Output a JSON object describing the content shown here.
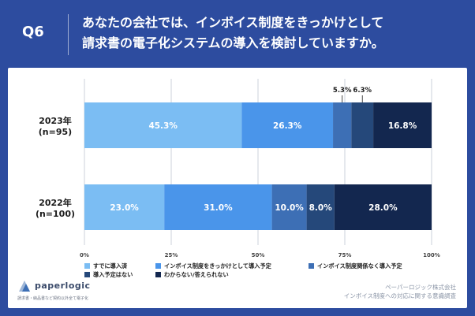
{
  "header": {
    "question_number": "Q6",
    "question_line1": "あなたの会社では、インボイス制度をきっかけとして",
    "question_line2": "請求書の電子化システムの導入を検討していますか。"
  },
  "chart_data": {
    "type": "bar",
    "orientation": "horizontal",
    "stacked": true,
    "categories": [
      {
        "line1": "2023年",
        "line2": "(n=95)"
      },
      {
        "line1": "2022年",
        "line2": "(n=100)"
      }
    ],
    "series": [
      {
        "name": "すでに導入済",
        "color": "#7bbdf3",
        "values": [
          45.3,
          23.0
        ],
        "labels": [
          "45.3%",
          "23.0%"
        ]
      },
      {
        "name": "インボイス制度をきっかけとして導入予定",
        "color": "#4a95ea",
        "values": [
          26.3,
          31.0
        ],
        "labels": [
          "26.3%",
          "31.0%"
        ]
      },
      {
        "name": "インボイス制度関係なく導入予定",
        "color": "#3d6fb5",
        "values": [
          5.3,
          10.0
        ],
        "labels": [
          "5.3%",
          "10.0%"
        ]
      },
      {
        "name": "導入予定はない",
        "color": "#25487a",
        "values": [
          6.3,
          8.0
        ],
        "labels": [
          "6.3%",
          "8.0%"
        ]
      },
      {
        "name": "わからない/答えられない",
        "color": "#13274f",
        "values": [
          16.8,
          28.0
        ],
        "labels": [
          "16.8%",
          "28.0%"
        ]
      }
    ],
    "x_ticks": [
      "0%",
      "25%",
      "50%",
      "75%",
      "100%"
    ],
    "xlim": [
      0,
      100
    ],
    "legend_position": "bottom-left"
  },
  "footer": {
    "logo_name": "paperlogic",
    "logo_tagline": "請求書・納品書など契約以外全て電子化",
    "source_line1": "ペーパーロジック株式会社",
    "source_line2": "インボイス制度への対応に関する意識調査"
  }
}
